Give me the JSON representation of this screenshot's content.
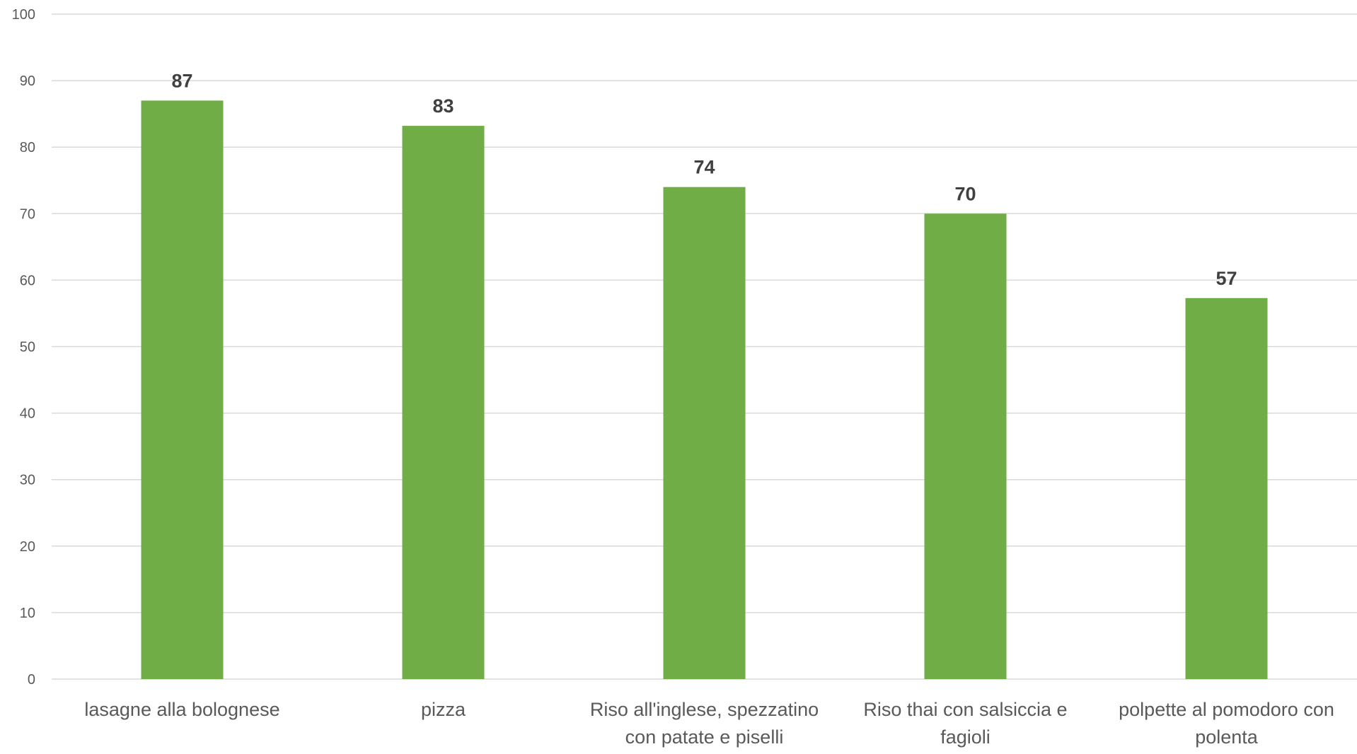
{
  "chart_data": {
    "type": "bar",
    "categories": [
      "lasagne alla bolognese",
      "pizza",
      "Riso all'inglese, spezzatino con patate e piselli",
      "Riso thai con salsiccia e fagioli",
      "polpette al pomodoro con polenta"
    ],
    "category_lines": [
      [
        "lasagne alla bolognese"
      ],
      [
        "pizza"
      ],
      [
        "Riso all'inglese, spezzatino",
        "con patate e piselli"
      ],
      [
        "Riso thai con salsiccia e",
        "fagioli"
      ],
      [
        "polpette al pomodoro con",
        "polenta"
      ]
    ],
    "values": [
      87,
      83.2,
      74,
      70,
      57.3
    ],
    "data_labels": [
      "87",
      "83",
      "74",
      "70",
      "57"
    ],
    "title": "",
    "xlabel": "",
    "ylabel": "",
    "ylim": [
      0,
      100
    ],
    "yticks": [
      0,
      10,
      20,
      30,
      40,
      50,
      60,
      70,
      80,
      90,
      100
    ],
    "grid": true,
    "legend": "none",
    "bar_color": "#70AD47",
    "grid_color": "#D9D9D9",
    "tick_label_color": "#595959",
    "data_label_color": "#404040"
  }
}
